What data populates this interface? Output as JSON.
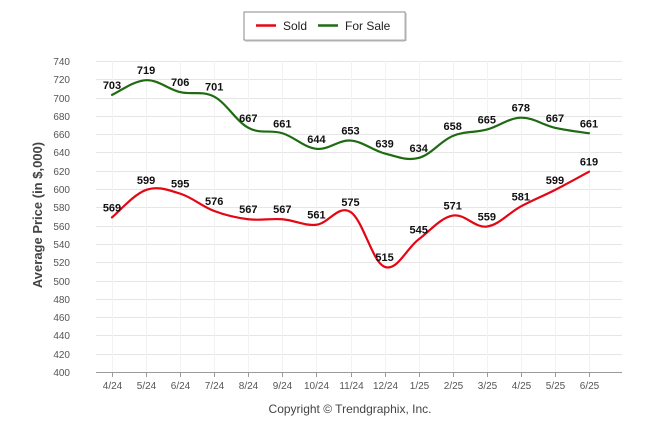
{
  "chart_data": {
    "type": "line",
    "ylabel": "Average Price (in $,000)",
    "xlabel": "",
    "footer": "Copyright © Trendgraphix, Inc.",
    "ylim": [
      400,
      740
    ],
    "ytick_step": 20,
    "grid": true,
    "legend_position": "top-center",
    "categories": [
      "4/24",
      "5/24",
      "6/24",
      "7/24",
      "8/24",
      "9/24",
      "10/24",
      "11/24",
      "12/24",
      "1/25",
      "2/25",
      "3/25",
      "4/25",
      "5/25",
      "6/25"
    ],
    "series": [
      {
        "name": "Sold",
        "color": "#e30613",
        "values": [
          569,
          599,
          595,
          576,
          567,
          567,
          561,
          575,
          515,
          545,
          571,
          559,
          581,
          599,
          619
        ]
      },
      {
        "name": "For Sale",
        "color": "#1e6b12",
        "values": [
          703,
          719,
          706,
          701,
          667,
          661,
          644,
          653,
          639,
          634,
          658,
          665,
          678,
          667,
          661
        ]
      }
    ]
  }
}
